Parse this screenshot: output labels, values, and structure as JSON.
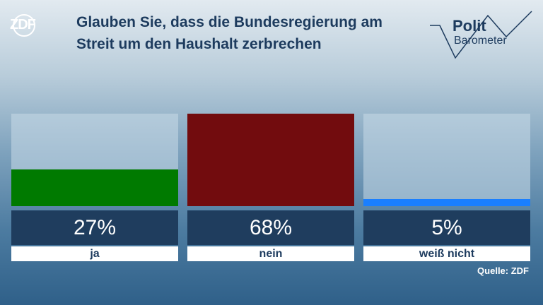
{
  "chart_data": {
    "type": "bar",
    "title": "Glauben Sie, dass die Bundesregierung am Streit um den Haushalt zerbrechen",
    "categories": [
      "ja",
      "nein",
      "weiß nicht"
    ],
    "values": [
      27,
      68,
      5
    ],
    "value_labels": [
      "27%",
      "68%",
      "5%"
    ],
    "colors": [
      "#007a00",
      "#720c0e",
      "#1a7fff"
    ],
    "source": "Quelle: ZDF",
    "logo": "ZDF",
    "brand": "Polit",
    "brand_sub": "Barometer"
  }
}
